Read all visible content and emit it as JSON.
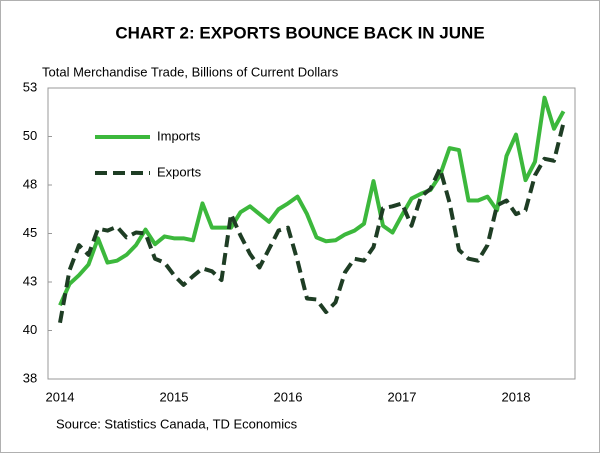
{
  "chart_data": {
    "type": "line",
    "title": "CHART 2: EXPORTS BOUNCE BACK IN JUNE",
    "subtitle": "Total Merchandise Trade, Billions of Current Dollars",
    "source": "Source: Statistics Canada, TD Economics",
    "categories": [
      "2014",
      null,
      null,
      null,
      null,
      null,
      null,
      null,
      null,
      null,
      null,
      null,
      "2015",
      null,
      null,
      null,
      null,
      null,
      null,
      null,
      null,
      null,
      null,
      null,
      "2016",
      null,
      null,
      null,
      null,
      null,
      null,
      null,
      null,
      null,
      null,
      null,
      "2017",
      null,
      null,
      null,
      null,
      null,
      null,
      null,
      null,
      null,
      null,
      null,
      "2018",
      null,
      null,
      null,
      null,
      null
    ],
    "series": [
      {
        "name": "Imports",
        "color": "#3cb83c",
        "dashed": false,
        "values": [
          41.3,
          42.4,
          42.85,
          43.4,
          44.75,
          43.5,
          43.6,
          43.9,
          44.4,
          45.2,
          44.45,
          44.85,
          44.75,
          44.75,
          44.65,
          46.55,
          45.3,
          45.3,
          45.3,
          46.1,
          46.4,
          46.0,
          45.6,
          46.25,
          46.55,
          46.9,
          46.0,
          44.8,
          44.6,
          44.65,
          44.95,
          45.15,
          45.5,
          47.7,
          45.4,
          45.05,
          45.95,
          46.8,
          47.05,
          47.25,
          48.0,
          49.4,
          49.3,
          46.7,
          46.7,
          46.9,
          46.2,
          49.0,
          50.1,
          47.75,
          48.7,
          52.0,
          50.4,
          51.3
        ]
      },
      {
        "name": "Exports",
        "color": "#1e3d24",
        "dashed": true,
        "values": [
          40.4,
          43.1,
          44.4,
          43.9,
          45.25,
          45.15,
          45.35,
          44.8,
          45.05,
          45.0,
          43.7,
          43.5,
          42.85,
          42.35,
          42.8,
          43.2,
          43.05,
          42.6,
          46.0,
          44.9,
          43.95,
          43.25,
          44.2,
          45.15,
          45.3,
          43.6,
          41.65,
          41.6,
          40.95,
          41.45,
          43.0,
          43.7,
          43.6,
          44.3,
          46.3,
          46.4,
          46.55,
          45.4,
          46.9,
          47.3,
          48.35,
          46.6,
          44.15,
          43.7,
          43.6,
          44.4,
          46.45,
          46.7,
          46.0,
          46.2,
          48.0,
          48.85,
          48.75,
          50.7
        ]
      }
    ],
    "ylim": [
      37.5,
      52.5
    ],
    "yticks": [
      {
        "value": 37.5,
        "label": "38"
      },
      40,
      {
        "value": 42.5,
        "label": "43"
      },
      45,
      {
        "value": 47.5,
        "label": "48"
      },
      50,
      {
        "value": 52.5,
        "label": "53"
      }
    ],
    "grid": false,
    "legend": "upper left"
  }
}
